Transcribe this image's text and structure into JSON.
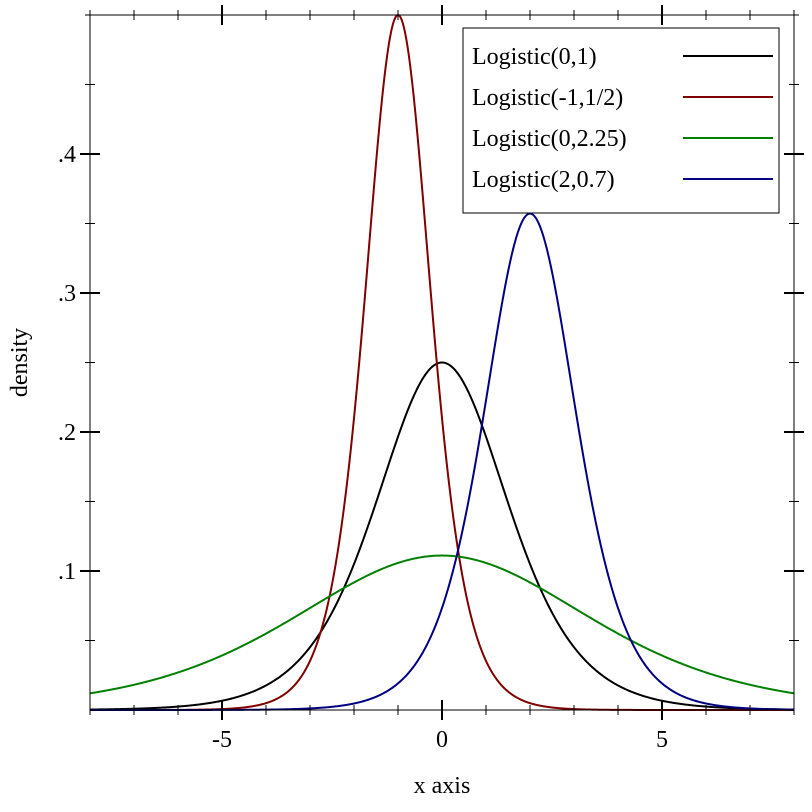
{
  "chart_data": {
    "type": "line",
    "xlabel": "x axis",
    "ylabel": "density",
    "xlim": [
      -8,
      8
    ],
    "ylim": [
      0,
      0.5
    ],
    "x_ticks": [
      -5,
      0,
      5
    ],
    "x_tick_labels": [
      "-5",
      "0",
      "5"
    ],
    "y_ticks": [
      0.1,
      0.2,
      0.3,
      0.4
    ],
    "y_tick_labels": [
      ".1",
      ".2",
      ".3",
      ".4"
    ],
    "grid": false,
    "legend_position": "top-right",
    "series": [
      {
        "name": "Logistic(0,1)",
        "mu": 0,
        "s": 1,
        "color": "#000000"
      },
      {
        "name": "Logistic(-1,1/2)",
        "mu": -1,
        "s": 0.5,
        "color": "#800000"
      },
      {
        "name": "Logistic(0,2.25)",
        "mu": 0,
        "s": 2.25,
        "color": "#008000"
      },
      {
        "name": "Logistic(2,0.7)",
        "mu": 2,
        "s": 0.7,
        "color": "#000080"
      }
    ]
  }
}
